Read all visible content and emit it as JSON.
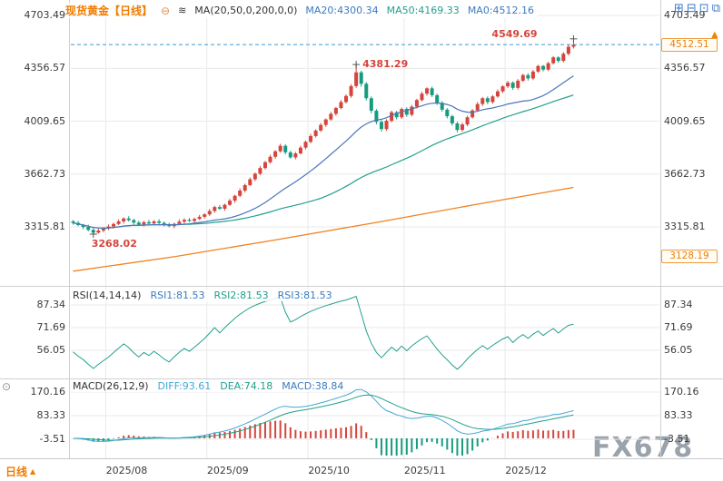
{
  "header": {
    "title": "现货黄金【日线】",
    "ma_label": "MA(20,50,0,200,0,0)",
    "ma20": "MA20:4300.34",
    "ma50": "MA50:4169.33",
    "ma0": "MA0:4512.16"
  },
  "icons": {
    "collapse": "⊖",
    "indicator": "≋",
    "layout_quad": "⊞",
    "layout_horizontal": "⊟",
    "layout_vertical": "⊡",
    "layout_overlay": "⧉",
    "settings": "⊙",
    "period_arrow": "▲",
    "price_flag": "▲"
  },
  "annotations": {
    "session_high": "4549.69",
    "october_peak": "4381.29",
    "august_low": "3268.02"
  },
  "badges": {
    "last_price": "4512.51",
    "lower_band": "3128.19"
  },
  "rsi_header": {
    "title": "RSI(14,14,14)",
    "rsi1": "RSI1:81.53",
    "rsi2": "RSI2:81.53",
    "rsi3": "RSI3:81.53"
  },
  "macd_header": {
    "title": "MACD(26,12,9)",
    "diff": "DIFF:93.61",
    "dea": "DEA:74.18",
    "macd": "MACD:38.84"
  },
  "bottom": {
    "period": "日线"
  },
  "watermark": "FX678",
  "colors": {
    "up": "#d5453c",
    "down": "#179b80",
    "ma20": "#4a77b8",
    "ma50": "#23a08c",
    "ma200": "#f0821e",
    "accent": "#f07b00",
    "blue_text": "#3a7bbf",
    "teal_text": "#23a08c",
    "lightblue_text": "#41a8d9",
    "dashed_line": "#3a9bd5",
    "grid": "#e9e9e9",
    "frame": "#d0d0d0",
    "watermark": "#9aa2ab",
    "badge_border": "#f09b3c",
    "badge_text": "#e8820c",
    "annotation": "#d5453c"
  },
  "chart_data": [
    {
      "type": "candlestick",
      "title": "现货黄金【日线】",
      "y_ticks": [
        4703.49,
        4356.57,
        4009.65,
        3662.73,
        3315.81
      ],
      "last_price": 4512.51,
      "lower_badge_value": 3128.19,
      "month_start_indices": [
        7,
        27,
        47,
        66,
        86
      ],
      "month_labels": [
        "2025/08",
        "2025/09",
        "2025/10",
        "2025/11",
        "2025/12"
      ],
      "ma200_points": [
        [
          0,
          3025
        ],
        [
          20,
          3120
        ],
        [
          40,
          3230
        ],
        [
          60,
          3345
        ],
        [
          80,
          3465
        ],
        [
          99,
          3575
        ]
      ],
      "annotations": [
        {
          "type": "low",
          "index": 4,
          "value": 3268.02
        },
        {
          "type": "high",
          "index": 56,
          "value": 4381.29
        },
        {
          "type": "high",
          "index": 99,
          "value": 4549.69
        }
      ],
      "ohlc": [
        [
          3352,
          3361,
          3331,
          3342
        ],
        [
          3342,
          3355,
          3320,
          3328
        ],
        [
          3328,
          3335,
          3301,
          3315
        ],
        [
          3315,
          3330,
          3287,
          3296
        ],
        [
          3296,
          3306,
          3268.02,
          3278
        ],
        [
          3278,
          3304,
          3271,
          3292
        ],
        [
          3292,
          3313,
          3280,
          3305
        ],
        [
          3305,
          3332,
          3295,
          3318
        ],
        [
          3318,
          3344,
          3305,
          3335
        ],
        [
          3335,
          3365,
          3327,
          3352
        ],
        [
          3352,
          3378,
          3338,
          3371
        ],
        [
          3371,
          3386,
          3351,
          3360
        ],
        [
          3360,
          3370,
          3331,
          3344
        ],
        [
          3344,
          3356,
          3324,
          3331
        ],
        [
          3331,
          3355,
          3319,
          3347
        ],
        [
          3347,
          3361,
          3328,
          3338
        ],
        [
          3338,
          3361,
          3326,
          3352
        ],
        [
          3352,
          3366,
          3332,
          3342
        ],
        [
          3342,
          3351,
          3319,
          3330
        ],
        [
          3330,
          3343,
          3313,
          3321
        ],
        [
          3321,
          3343,
          3307,
          3336
        ],
        [
          3336,
          3365,
          3327,
          3350
        ],
        [
          3350,
          3372,
          3337,
          3362
        ],
        [
          3362,
          3374,
          3348,
          3355
        ],
        [
          3355,
          3376,
          3341,
          3368
        ],
        [
          3368,
          3394,
          3361,
          3382
        ],
        [
          3382,
          3406,
          3370,
          3398
        ],
        [
          3398,
          3434,
          3388,
          3420
        ],
        [
          3420,
          3455,
          3409,
          3446
        ],
        [
          3446,
          3459,
          3427,
          3435
        ],
        [
          3435,
          3468,
          3422,
          3461
        ],
        [
          3461,
          3501,
          3453,
          3488
        ],
        [
          3488,
          3527,
          3474,
          3520
        ],
        [
          3520,
          3569,
          3511,
          3554
        ],
        [
          3554,
          3600,
          3541,
          3590
        ],
        [
          3590,
          3640,
          3583,
          3628
        ],
        [
          3628,
          3673,
          3616,
          3665
        ],
        [
          3665,
          3716,
          3655,
          3702
        ],
        [
          3702,
          3749,
          3692,
          3740
        ],
        [
          3740,
          3789,
          3731,
          3776
        ],
        [
          3776,
          3819,
          3763,
          3812
        ],
        [
          3812,
          3861,
          3803,
          3848
        ],
        [
          3848,
          3858,
          3791,
          3805
        ],
        [
          3805,
          3815,
          3763,
          3772
        ],
        [
          3772,
          3808,
          3759,
          3798
        ],
        [
          3798,
          3848,
          3791,
          3836
        ],
        [
          3836,
          3882,
          3824,
          3874
        ],
        [
          3874,
          3926,
          3864,
          3912
        ],
        [
          3912,
          3957,
          3902,
          3948
        ],
        [
          3948,
          3998,
          3939,
          3985
        ],
        [
          3985,
          4028,
          3972,
          4021
        ],
        [
          4021,
          4071,
          4012,
          4058
        ],
        [
          4058,
          4103,
          4045,
          4096
        ],
        [
          4096,
          4148,
          4087,
          4135
        ],
        [
          4135,
          4185,
          4126,
          4175
        ],
        [
          4175,
          4252,
          4163,
          4240
        ],
        [
          4240,
          4381.29,
          4228,
          4330
        ],
        [
          4330,
          4341,
          4236,
          4255
        ],
        [
          4255,
          4266,
          4146,
          4160
        ],
        [
          4160,
          4172,
          4061,
          4078
        ],
        [
          4078,
          4089,
          3989,
          4005
        ],
        [
          4005,
          4016,
          3941,
          3958
        ],
        [
          3958,
          4022,
          3946,
          4012
        ],
        [
          4012,
          4079,
          4001,
          4068
        ],
        [
          4068,
          4077,
          4021,
          4035
        ],
        [
          4035,
          4099,
          4024,
          4090
        ],
        [
          4090,
          4101,
          4038,
          4052
        ],
        [
          4052,
          4116,
          4041,
          4105
        ],
        [
          4105,
          4157,
          4093,
          4148
        ],
        [
          4148,
          4203,
          4139,
          4190
        ],
        [
          4190,
          4232,
          4177,
          4225
        ],
        [
          4225,
          4237,
          4168,
          4180
        ],
        [
          4180,
          4190,
          4116,
          4130
        ],
        [
          4130,
          4141,
          4072,
          4085
        ],
        [
          4085,
          4095,
          4028,
          4042
        ],
        [
          4042,
          4052,
          3981,
          3995
        ],
        [
          3995,
          4006,
          3936,
          3952
        ],
        [
          3952,
          3999,
          3940,
          3988
        ],
        [
          3988,
          4046,
          3976,
          4035
        ],
        [
          4035,
          4089,
          4026,
          4080
        ],
        [
          4080,
          4135,
          4071,
          4122
        ],
        [
          4122,
          4168,
          4110,
          4160
        ],
        [
          4160,
          4172,
          4121,
          4135
        ],
        [
          4135,
          4181,
          4124,
          4172
        ],
        [
          4172,
          4218,
          4163,
          4205
        ],
        [
          4205,
          4246,
          4194,
          4238
        ],
        [
          4238,
          4274,
          4227,
          4262
        ],
        [
          4262,
          4271,
          4215,
          4228
        ],
        [
          4228,
          4286,
          4217,
          4275
        ],
        [
          4275,
          4321,
          4266,
          4312
        ],
        [
          4312,
          4324,
          4276,
          4290
        ],
        [
          4290,
          4346,
          4279,
          4335
        ],
        [
          4335,
          4379,
          4326,
          4372
        ],
        [
          4372,
          4378,
          4336,
          4348
        ],
        [
          4348,
          4399,
          4338,
          4390
        ],
        [
          4390,
          4437,
          4381,
          4428
        ],
        [
          4428,
          4436,
          4392,
          4405
        ],
        [
          4405,
          4463,
          4396,
          4452
        ],
        [
          4452,
          4511,
          4441,
          4498
        ],
        [
          4498,
          4549.69,
          4486,
          4512.51
        ]
      ]
    },
    {
      "type": "line",
      "title": "RSI(14,14,14)",
      "y_ticks": [
        87.34,
        71.69,
        56.05
      ],
      "period": 14,
      "current": {
        "rsi1": 81.53,
        "rsi2": 81.53,
        "rsi3": 81.53
      }
    },
    {
      "type": "line+bar",
      "title": "MACD(26,12,9)",
      "y_ticks": [
        170.16,
        83.33,
        -3.51
      ],
      "params": [
        26,
        12,
        9
      ],
      "current": {
        "diff": 93.61,
        "dea": 74.18,
        "macd": 38.84
      }
    }
  ]
}
